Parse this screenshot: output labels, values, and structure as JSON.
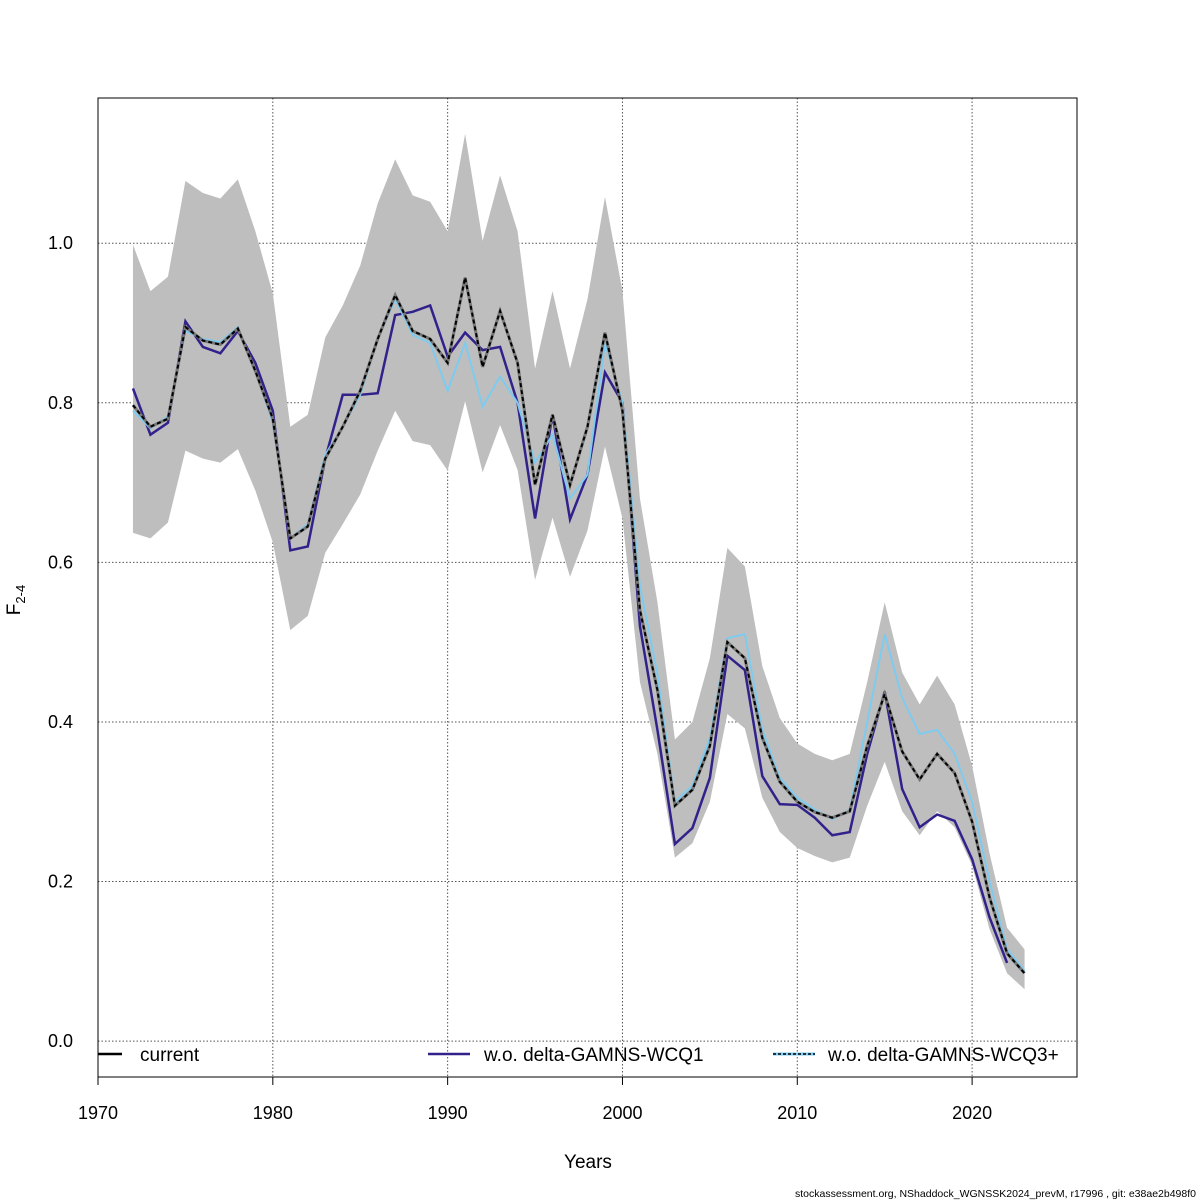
{
  "chart_data": {
    "type": "line",
    "title": "",
    "xlabel": "Years",
    "ylabel_main": "F",
    "ylabel_sub": "2-4",
    "xlim": [
      1970,
      2026
    ],
    "ylim": [
      -0.045,
      1.182
    ],
    "xticks": [
      1970,
      1980,
      1990,
      2000,
      2010,
      2020
    ],
    "yticks": [
      "0.0",
      "0.2",
      "0.4",
      "0.6",
      "0.8",
      "1.0"
    ],
    "grid": true,
    "legend_placement": "bottom",
    "x": [
      1972,
      1973,
      1974,
      1975,
      1976,
      1977,
      1978,
      1979,
      1980,
      1981,
      1982,
      1983,
      1984,
      1985,
      1986,
      1987,
      1988,
      1989,
      1990,
      1991,
      1992,
      1993,
      1994,
      1995,
      1996,
      1997,
      1998,
      1999,
      2000,
      2001,
      2002,
      2003,
      2004,
      2005,
      2006,
      2007,
      2008,
      2009,
      2010,
      2011,
      2012,
      2013,
      2014,
      2015,
      2016,
      2017,
      2018,
      2019,
      2020,
      2021,
      2022,
      2023
    ],
    "band": {
      "color": "#bebebe",
      "upper": [
        0.998,
        0.94,
        0.958,
        1.078,
        1.063,
        1.056,
        1.08,
        1.015,
        0.937,
        0.77,
        0.785,
        0.882,
        0.922,
        0.972,
        1.05,
        1.105,
        1.06,
        1.052,
        1.015,
        1.137,
        1.003,
        1.085,
        1.015,
        0.843,
        0.94,
        0.843,
        0.93,
        1.058,
        0.94,
        0.68,
        0.55,
        0.378,
        0.4,
        0.48,
        0.618,
        0.595,
        0.47,
        0.405,
        0.373,
        0.36,
        0.352,
        0.36,
        0.45,
        0.55,
        0.462,
        0.422,
        0.458,
        0.422,
        0.345,
        0.235,
        0.142,
        0.115
      ],
      "lower": [
        0.637,
        0.63,
        0.65,
        0.74,
        0.73,
        0.725,
        0.742,
        0.69,
        0.625,
        0.515,
        0.533,
        0.612,
        0.648,
        0.685,
        0.74,
        0.79,
        0.752,
        0.747,
        0.715,
        0.802,
        0.713,
        0.772,
        0.716,
        0.578,
        0.656,
        0.582,
        0.64,
        0.745,
        0.655,
        0.45,
        0.36,
        0.23,
        0.248,
        0.3,
        0.41,
        0.392,
        0.305,
        0.262,
        0.242,
        0.232,
        0.224,
        0.23,
        0.295,
        0.35,
        0.288,
        0.258,
        0.288,
        0.268,
        0.22,
        0.14,
        0.085,
        0.065
      ]
    },
    "series": [
      {
        "name": "current",
        "color": "#000000",
        "dashed": true,
        "values": [
          0.797,
          0.77,
          0.78,
          0.895,
          0.878,
          0.873,
          0.893,
          0.84,
          0.78,
          0.63,
          0.645,
          0.73,
          0.77,
          0.815,
          0.88,
          0.935,
          0.89,
          0.88,
          0.85,
          0.957,
          0.845,
          0.915,
          0.85,
          0.697,
          0.785,
          0.697,
          0.77,
          0.888,
          0.79,
          0.54,
          0.44,
          0.295,
          0.315,
          0.37,
          0.5,
          0.48,
          0.38,
          0.325,
          0.3,
          0.287,
          0.28,
          0.288,
          0.37,
          0.435,
          0.363,
          0.328,
          0.36,
          0.336,
          0.275,
          0.18,
          0.11,
          0.085
        ]
      },
      {
        "name": "w.o. delta-GAMNS-WCQ1",
        "color": "#31218b",
        "dashed": false,
        "values": [
          0.818,
          0.76,
          0.775,
          0.902,
          0.87,
          0.862,
          0.89,
          0.85,
          0.79,
          0.615,
          0.62,
          0.73,
          0.81,
          0.81,
          0.812,
          0.91,
          0.914,
          0.922,
          0.858,
          0.888,
          0.866,
          0.87,
          0.8,
          0.655,
          0.785,
          0.654,
          0.71,
          0.838,
          0.8,
          0.52,
          0.39,
          0.247,
          0.267,
          0.33,
          0.483,
          0.465,
          0.332,
          0.297,
          0.296,
          0.28,
          0.258,
          0.262,
          0.36,
          0.438,
          0.316,
          0.268,
          0.284,
          0.276,
          0.228,
          0.155,
          0.098,
          null
        ]
      },
      {
        "name": "w.o. delta-GAMNS-WCQ3+",
        "color": "#7ecbf0",
        "dashed": false,
        "values": [
          0.79,
          0.768,
          0.783,
          0.89,
          0.88,
          0.876,
          0.895,
          0.84,
          0.775,
          0.63,
          0.648,
          0.735,
          0.77,
          0.81,
          0.88,
          0.93,
          0.885,
          0.875,
          0.815,
          0.875,
          0.795,
          0.833,
          0.8,
          0.725,
          0.76,
          0.68,
          0.71,
          0.875,
          0.8,
          0.57,
          0.46,
          0.3,
          0.32,
          0.38,
          0.505,
          0.51,
          0.39,
          0.33,
          0.305,
          0.29,
          0.278,
          0.29,
          0.4,
          0.51,
          0.43,
          0.385,
          0.39,
          0.36,
          0.3,
          0.2,
          0.115,
          0.088
        ]
      }
    ]
  },
  "footer": "stockassessment.org, NShaddock_WGNSSK2024_prevM, r17996 , git: e38ae2b498f0"
}
